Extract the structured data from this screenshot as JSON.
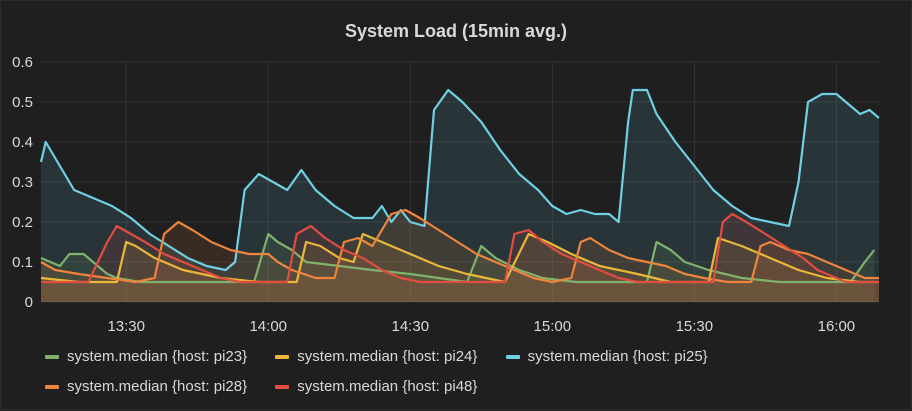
{
  "panel": {
    "title": "System Load (15min avg.)"
  },
  "chart_data": {
    "type": "area",
    "title": "System Load (15min avg.)",
    "xlabel": "",
    "ylabel": "",
    "ylim": [
      0,
      0.6
    ],
    "yticks": [
      0,
      0.1,
      0.2,
      0.3,
      0.4,
      0.5,
      0.6
    ],
    "ytick_labels": [
      "0",
      "0.1",
      "0.2",
      "0.3",
      "0.4",
      "0.5",
      "0.6"
    ],
    "xlim": [
      "13:12",
      "16:09"
    ],
    "xticks": [
      "13:30",
      "14:00",
      "14:30",
      "15:00",
      "15:30",
      "16:00"
    ],
    "grid": true,
    "legend_position": "bottom",
    "series": [
      {
        "name": "system.median {host: pi23}",
        "color": "#7eb26d",
        "points": [
          [
            "13:12",
            0.11
          ],
          [
            "13:16",
            0.09
          ],
          [
            "13:18",
            0.12
          ],
          [
            "13:21",
            0.12
          ],
          [
            "13:23",
            0.1
          ],
          [
            "13:26",
            0.07
          ],
          [
            "13:28",
            0.06
          ],
          [
            "13:33",
            0.05
          ],
          [
            "13:42",
            0.05
          ],
          [
            "13:52",
            0.05
          ],
          [
            "13:57",
            0.05
          ],
          [
            "14:00",
            0.17
          ],
          [
            "14:02",
            0.15
          ],
          [
            "14:05",
            0.13
          ],
          [
            "14:08",
            0.1
          ],
          [
            "14:15",
            0.09
          ],
          [
            "14:22",
            0.08
          ],
          [
            "14:30",
            0.07
          ],
          [
            "14:36",
            0.06
          ],
          [
            "14:42",
            0.05
          ],
          [
            "14:45",
            0.14
          ],
          [
            "14:48",
            0.11
          ],
          [
            "14:53",
            0.08
          ],
          [
            "14:58",
            0.06
          ],
          [
            "15:05",
            0.05
          ],
          [
            "15:12",
            0.05
          ],
          [
            "15:20",
            0.05
          ],
          [
            "15:22",
            0.15
          ],
          [
            "15:25",
            0.13
          ],
          [
            "15:28",
            0.1
          ],
          [
            "15:33",
            0.08
          ],
          [
            "15:40",
            0.06
          ],
          [
            "15:48",
            0.05
          ],
          [
            "15:58",
            0.05
          ],
          [
            "16:03",
            0.05
          ],
          [
            "16:06",
            0.1
          ],
          [
            "16:08",
            0.13
          ]
        ]
      },
      {
        "name": "system.median {host: pi24}",
        "color": "#eab839",
        "points": [
          [
            "13:12",
            0.06
          ],
          [
            "13:20",
            0.05
          ],
          [
            "13:28",
            0.05
          ],
          [
            "13:30",
            0.15
          ],
          [
            "13:32",
            0.14
          ],
          [
            "13:36",
            0.11
          ],
          [
            "13:42",
            0.08
          ],
          [
            "13:50",
            0.06
          ],
          [
            "13:58",
            0.05
          ],
          [
            "14:06",
            0.05
          ],
          [
            "14:08",
            0.15
          ],
          [
            "14:11",
            0.14
          ],
          [
            "14:15",
            0.11
          ],
          [
            "14:18",
            0.1
          ],
          [
            "14:20",
            0.17
          ],
          [
            "14:24",
            0.15
          ],
          [
            "14:30",
            0.12
          ],
          [
            "14:36",
            0.09
          ],
          [
            "14:42",
            0.07
          ],
          [
            "14:50",
            0.05
          ],
          [
            "14:55",
            0.17
          ],
          [
            "14:59",
            0.15
          ],
          [
            "15:04",
            0.12
          ],
          [
            "15:10",
            0.09
          ],
          [
            "15:18",
            0.07
          ],
          [
            "15:25",
            0.05
          ],
          [
            "15:33",
            0.05
          ],
          [
            "15:35",
            0.16
          ],
          [
            "15:40",
            0.14
          ],
          [
            "15:46",
            0.11
          ],
          [
            "15:52",
            0.08
          ],
          [
            "15:58",
            0.06
          ],
          [
            "16:05",
            0.05
          ],
          [
            "16:09",
            0.05
          ]
        ]
      },
      {
        "name": "system.median {host: pi25}",
        "color": "#6ed0e0",
        "points": [
          [
            "13:12",
            0.35
          ],
          [
            "13:13",
            0.4
          ],
          [
            "13:16",
            0.34
          ],
          [
            "13:19",
            0.28
          ],
          [
            "13:23",
            0.26
          ],
          [
            "13:27",
            0.24
          ],
          [
            "13:31",
            0.21
          ],
          [
            "13:35",
            0.17
          ],
          [
            "13:39",
            0.14
          ],
          [
            "13:43",
            0.11
          ],
          [
            "13:47",
            0.09
          ],
          [
            "13:51",
            0.08
          ],
          [
            "13:53",
            0.1
          ],
          [
            "13:55",
            0.28
          ],
          [
            "13:58",
            0.32
          ],
          [
            "14:01",
            0.3
          ],
          [
            "14:04",
            0.28
          ],
          [
            "14:07",
            0.33
          ],
          [
            "14:10",
            0.28
          ],
          [
            "14:14",
            0.24
          ],
          [
            "14:18",
            0.21
          ],
          [
            "14:22",
            0.21
          ],
          [
            "14:24",
            0.24
          ],
          [
            "14:26",
            0.2
          ],
          [
            "14:28",
            0.23
          ],
          [
            "14:30",
            0.2
          ],
          [
            "14:33",
            0.19
          ],
          [
            "14:35",
            0.48
          ],
          [
            "14:38",
            0.53
          ],
          [
            "14:41",
            0.5
          ],
          [
            "14:45",
            0.45
          ],
          [
            "14:49",
            0.38
          ],
          [
            "14:53",
            0.32
          ],
          [
            "14:57",
            0.28
          ],
          [
            "15:00",
            0.24
          ],
          [
            "15:03",
            0.22
          ],
          [
            "15:06",
            0.23
          ],
          [
            "15:09",
            0.22
          ],
          [
            "15:12",
            0.22
          ],
          [
            "15:14",
            0.2
          ],
          [
            "15:16",
            0.45
          ],
          [
            "15:17",
            0.53
          ],
          [
            "15:20",
            0.53
          ],
          [
            "15:22",
            0.47
          ],
          [
            "15:26",
            0.4
          ],
          [
            "15:30",
            0.34
          ],
          [
            "15:34",
            0.28
          ],
          [
            "15:38",
            0.24
          ],
          [
            "15:42",
            0.21
          ],
          [
            "15:46",
            0.2
          ],
          [
            "15:50",
            0.19
          ],
          [
            "15:52",
            0.3
          ],
          [
            "15:54",
            0.5
          ],
          [
            "15:57",
            0.52
          ],
          [
            "16:00",
            0.52
          ],
          [
            "16:02",
            0.5
          ],
          [
            "16:05",
            0.47
          ],
          [
            "16:07",
            0.48
          ],
          [
            "16:09",
            0.46
          ]
        ]
      },
      {
        "name": "system.median {host: pi28}",
        "color": "#ef843c",
        "points": [
          [
            "13:12",
            0.1
          ],
          [
            "13:15",
            0.08
          ],
          [
            "13:20",
            0.07
          ],
          [
            "13:26",
            0.06
          ],
          [
            "13:32",
            0.05
          ],
          [
            "13:36",
            0.06
          ],
          [
            "13:38",
            0.17
          ],
          [
            "13:41",
            0.2
          ],
          [
            "13:44",
            0.18
          ],
          [
            "13:48",
            0.15
          ],
          [
            "13:52",
            0.13
          ],
          [
            "13:56",
            0.12
          ],
          [
            "14:00",
            0.12
          ],
          [
            "14:02",
            0.1
          ],
          [
            "14:05",
            0.08
          ],
          [
            "14:10",
            0.06
          ],
          [
            "14:14",
            0.06
          ],
          [
            "14:16",
            0.15
          ],
          [
            "14:19",
            0.16
          ],
          [
            "14:22",
            0.14
          ],
          [
            "14:26",
            0.22
          ],
          [
            "14:29",
            0.23
          ],
          [
            "14:32",
            0.21
          ],
          [
            "14:36",
            0.18
          ],
          [
            "14:40",
            0.15
          ],
          [
            "14:44",
            0.12
          ],
          [
            "14:48",
            0.1
          ],
          [
            "14:52",
            0.08
          ],
          [
            "14:56",
            0.06
          ],
          [
            "15:00",
            0.05
          ],
          [
            "15:04",
            0.06
          ],
          [
            "15:06",
            0.15
          ],
          [
            "15:08",
            0.16
          ],
          [
            "15:12",
            0.13
          ],
          [
            "15:16",
            0.11
          ],
          [
            "15:20",
            0.1
          ],
          [
            "15:24",
            0.09
          ],
          [
            "15:28",
            0.07
          ],
          [
            "15:32",
            0.06
          ],
          [
            "15:37",
            0.05
          ],
          [
            "15:42",
            0.05
          ],
          [
            "15:44",
            0.14
          ],
          [
            "15:46",
            0.15
          ],
          [
            "15:50",
            0.13
          ],
          [
            "15:54",
            0.12
          ],
          [
            "15:58",
            0.1
          ],
          [
            "16:02",
            0.08
          ],
          [
            "16:06",
            0.06
          ],
          [
            "16:09",
            0.06
          ]
        ]
      },
      {
        "name": "system.median {host: pi48}",
        "color": "#e24d42",
        "points": [
          [
            "13:12",
            0.05
          ],
          [
            "13:16",
            0.05
          ],
          [
            "13:22",
            0.05
          ],
          [
            "13:26",
            0.15
          ],
          [
            "13:28",
            0.19
          ],
          [
            "13:31",
            0.17
          ],
          [
            "13:34",
            0.15
          ],
          [
            "13:38",
            0.12
          ],
          [
            "13:42",
            0.1
          ],
          [
            "13:46",
            0.08
          ],
          [
            "13:50",
            0.06
          ],
          [
            "13:54",
            0.05
          ],
          [
            "14:00",
            0.05
          ],
          [
            "14:04",
            0.05
          ],
          [
            "14:06",
            0.17
          ],
          [
            "14:09",
            0.19
          ],
          [
            "14:12",
            0.16
          ],
          [
            "14:16",
            0.13
          ],
          [
            "14:20",
            0.11
          ],
          [
            "14:24",
            0.08
          ],
          [
            "14:28",
            0.06
          ],
          [
            "14:32",
            0.05
          ],
          [
            "14:44",
            0.05
          ],
          [
            "14:50",
            0.05
          ],
          [
            "14:52",
            0.17
          ],
          [
            "14:55",
            0.18
          ],
          [
            "14:58",
            0.15
          ],
          [
            "15:02",
            0.12
          ],
          [
            "15:06",
            0.1
          ],
          [
            "15:10",
            0.08
          ],
          [
            "15:14",
            0.06
          ],
          [
            "15:18",
            0.05
          ],
          [
            "15:26",
            0.05
          ],
          [
            "15:34",
            0.05
          ],
          [
            "15:36",
            0.2
          ],
          [
            "15:38",
            0.22
          ],
          [
            "15:41",
            0.2
          ],
          [
            "15:45",
            0.17
          ],
          [
            "15:49",
            0.14
          ],
          [
            "15:53",
            0.11
          ],
          [
            "15:56",
            0.08
          ],
          [
            "16:00",
            0.06
          ],
          [
            "16:02",
            0.05
          ],
          [
            "16:09",
            0.05
          ]
        ]
      }
    ]
  },
  "legend": {
    "items": [
      {
        "label": "system.median {host: pi23}",
        "color": "#7eb26d"
      },
      {
        "label": "system.median {host: pi24}",
        "color": "#eab839"
      },
      {
        "label": "system.median {host: pi25}",
        "color": "#6ed0e0"
      },
      {
        "label": "system.median {host: pi28}",
        "color": "#ef843c"
      },
      {
        "label": "system.median {host: pi48}",
        "color": "#e24d42"
      }
    ]
  }
}
